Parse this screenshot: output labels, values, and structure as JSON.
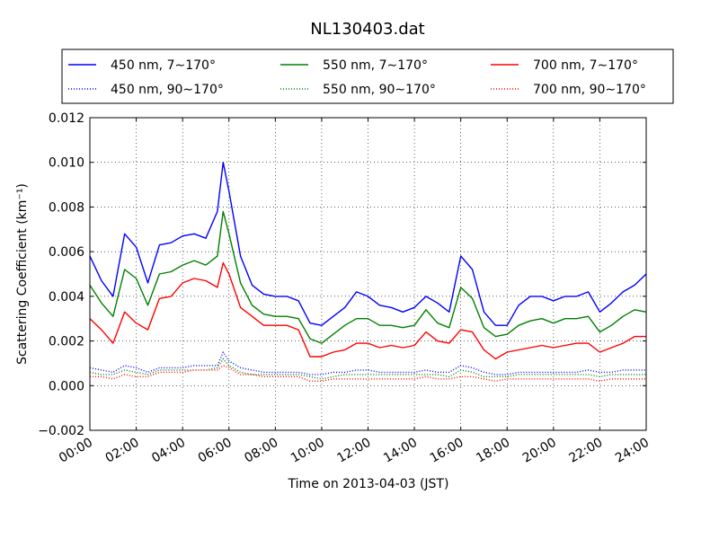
{
  "chart_data": {
    "type": "line",
    "title": "NL130403.dat",
    "xlabel": "Time on 2013-04-03 (JST)",
    "ylabel": "Scattering Coefficient (km⁻¹)",
    "xlim": [
      0,
      24
    ],
    "ylim": [
      -0.002,
      0.012
    ],
    "x_tick_labels": [
      "00:00",
      "02:00",
      "04:00",
      "06:00",
      "08:00",
      "10:00",
      "12:00",
      "14:00",
      "16:00",
      "18:00",
      "20:00",
      "22:00",
      "24:00"
    ],
    "y_tick_labels": [
      "−0.002",
      "0.000",
      "0.002",
      "0.004",
      "0.006",
      "0.008",
      "0.010",
      "0.012"
    ],
    "y_ticks": [
      -0.002,
      0.0,
      0.002,
      0.004,
      0.006,
      0.008,
      0.01,
      0.012
    ],
    "x_ticks": [
      0,
      2,
      4,
      6,
      8,
      10,
      12,
      14,
      16,
      18,
      20,
      22,
      24
    ],
    "grid": true,
    "legend_position": "top",
    "colors": {
      "blue": "#0000ff",
      "green": "#008000",
      "red": "#ff0000"
    },
    "x": [
      0,
      0.5,
      1,
      1.5,
      2,
      2.5,
      3,
      3.5,
      4,
      4.5,
      5,
      5.5,
      5.75,
      6,
      6.5,
      7,
      7.5,
      8,
      8.5,
      9,
      9.5,
      10,
      10.5,
      11,
      11.5,
      12,
      12.5,
      13,
      13.5,
      14,
      14.5,
      15,
      15.5,
      16,
      16.5,
      17,
      17.5,
      18,
      18.5,
      19,
      19.5,
      20,
      20.5,
      21,
      21.5,
      22,
      22.5,
      23,
      23.5,
      24
    ],
    "series": [
      {
        "name": "450 nm, 7∼170°",
        "color": "blue",
        "style": "solid",
        "values": [
          0.0058,
          0.0047,
          0.004,
          0.0068,
          0.0062,
          0.0046,
          0.0063,
          0.0064,
          0.0067,
          0.0068,
          0.0066,
          0.0078,
          0.01,
          0.0087,
          0.0058,
          0.0045,
          0.0041,
          0.004,
          0.004,
          0.0038,
          0.0028,
          0.0027,
          0.0031,
          0.0035,
          0.0042,
          0.004,
          0.0036,
          0.0035,
          0.0033,
          0.0035,
          0.004,
          0.0037,
          0.0033,
          0.0058,
          0.0052,
          0.0033,
          0.0027,
          0.0027,
          0.0036,
          0.004,
          0.004,
          0.0038,
          0.004,
          0.004,
          0.0042,
          0.0033,
          0.0037,
          0.0042,
          0.0045,
          0.005
        ]
      },
      {
        "name": "550 nm, 7∼170°",
        "color": "green",
        "style": "solid",
        "values": [
          0.0045,
          0.0037,
          0.0031,
          0.0052,
          0.0048,
          0.0036,
          0.005,
          0.0051,
          0.0054,
          0.0056,
          0.0054,
          0.0058,
          0.0078,
          0.0068,
          0.0046,
          0.0036,
          0.0032,
          0.0031,
          0.0031,
          0.003,
          0.0021,
          0.0019,
          0.0023,
          0.0027,
          0.003,
          0.003,
          0.0027,
          0.0027,
          0.0026,
          0.0027,
          0.0034,
          0.0028,
          0.0026,
          0.0044,
          0.0039,
          0.0026,
          0.0022,
          0.0023,
          0.0027,
          0.0029,
          0.003,
          0.0028,
          0.003,
          0.003,
          0.0031,
          0.0024,
          0.0027,
          0.0031,
          0.0034,
          0.0033
        ]
      },
      {
        "name": "700 nm, 7∼170°",
        "color": "red",
        "style": "solid",
        "values": [
          0.003,
          0.0025,
          0.0019,
          0.0033,
          0.0028,
          0.0025,
          0.0039,
          0.004,
          0.0046,
          0.0048,
          0.0047,
          0.0044,
          0.0055,
          0.005,
          0.0035,
          0.0031,
          0.0027,
          0.0027,
          0.0027,
          0.0025,
          0.0013,
          0.0013,
          0.0015,
          0.0016,
          0.0019,
          0.0019,
          0.0017,
          0.0018,
          0.0017,
          0.0018,
          0.0024,
          0.002,
          0.0019,
          0.0025,
          0.0024,
          0.0016,
          0.0012,
          0.0015,
          0.0016,
          0.0017,
          0.0018,
          0.0017,
          0.0018,
          0.0019,
          0.0019,
          0.0015,
          0.0017,
          0.0019,
          0.0022,
          0.0022
        ]
      },
      {
        "name": "450 nm, 90∼170°",
        "color": "blue",
        "style": "dotted",
        "values": [
          0.0008,
          0.0007,
          0.0006,
          0.0009,
          0.0008,
          0.0006,
          0.0008,
          0.0008,
          0.0008,
          0.0009,
          0.0009,
          0.0009,
          0.0015,
          0.0011,
          0.0008,
          0.0007,
          0.0006,
          0.0006,
          0.0006,
          0.0006,
          0.0005,
          0.0005,
          0.0006,
          0.0006,
          0.0007,
          0.0007,
          0.0006,
          0.0006,
          0.0006,
          0.0006,
          0.0007,
          0.0006,
          0.0006,
          0.0009,
          0.0008,
          0.0006,
          0.0005,
          0.0005,
          0.0006,
          0.0006,
          0.0006,
          0.0006,
          0.0006,
          0.0006,
          0.0007,
          0.0006,
          0.0006,
          0.0007,
          0.0007,
          0.0007
        ]
      },
      {
        "name": "550 nm, 90∼170°",
        "color": "green",
        "style": "dotted",
        "values": [
          0.0006,
          0.0005,
          0.0005,
          0.0007,
          0.0006,
          0.0005,
          0.0007,
          0.0007,
          0.0007,
          0.0007,
          0.0007,
          0.0008,
          0.0012,
          0.0009,
          0.0006,
          0.0005,
          0.0005,
          0.0005,
          0.0005,
          0.0005,
          0.0004,
          0.0003,
          0.0004,
          0.0005,
          0.0005,
          0.0005,
          0.0005,
          0.0005,
          0.0005,
          0.0005,
          0.0005,
          0.0005,
          0.0004,
          0.0007,
          0.0006,
          0.0004,
          0.0004,
          0.0004,
          0.0005,
          0.0005,
          0.0005,
          0.0005,
          0.0005,
          0.0005,
          0.0005,
          0.0004,
          0.0005,
          0.0005,
          0.0005,
          0.0005
        ]
      },
      {
        "name": "700 nm, 90∼170°",
        "color": "red",
        "style": "dotted",
        "values": [
          0.0004,
          0.0004,
          0.0003,
          0.0005,
          0.0004,
          0.0004,
          0.0006,
          0.0006,
          0.0006,
          0.0007,
          0.0007,
          0.0007,
          0.0009,
          0.0008,
          0.0005,
          0.0005,
          0.0004,
          0.0004,
          0.0004,
          0.0004,
          0.0002,
          0.0002,
          0.0003,
          0.0003,
          0.0003,
          0.0003,
          0.0003,
          0.0003,
          0.0003,
          0.0003,
          0.0004,
          0.0003,
          0.0003,
          0.0004,
          0.0004,
          0.0003,
          0.0002,
          0.0003,
          0.0003,
          0.0003,
          0.0003,
          0.0003,
          0.0003,
          0.0003,
          0.0003,
          0.0002,
          0.0003,
          0.0003,
          0.0003,
          0.0003
        ]
      }
    ]
  }
}
